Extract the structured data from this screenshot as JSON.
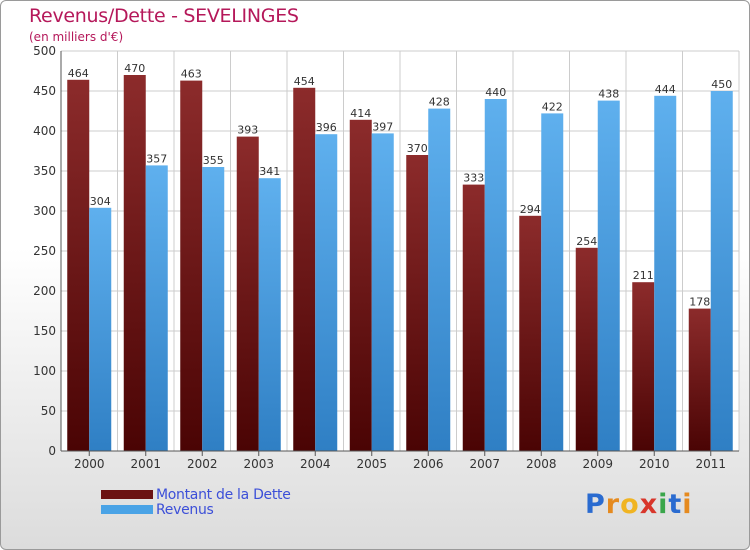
{
  "title": "Revenus/Dette - SEVELINGES",
  "subtitle": "(en milliers d'€)",
  "colors": {
    "title": "#b5185a",
    "dette": "#7a2323",
    "revenus": "#4aa3e6",
    "legend_text": "#3c4fd8"
  },
  "legend": {
    "items": [
      {
        "label": "Montant de la Dette",
        "color": "#6b1212"
      },
      {
        "label": "Revenus",
        "color": "#4aa3e6"
      }
    ]
  },
  "logo": {
    "letters": [
      {
        "ch": "P",
        "color": "#2a6bd0"
      },
      {
        "ch": "r",
        "color": "#e58a1f"
      },
      {
        "ch": "o",
        "color": "#f0b422"
      },
      {
        "ch": "x",
        "color": "#d8362b"
      },
      {
        "ch": "i",
        "color": "#3aa64b"
      },
      {
        "ch": "t",
        "color": "#2a6bd0"
      },
      {
        "ch": "i",
        "color": "#e58a1f"
      }
    ]
  },
  "chart_data": {
    "type": "bar",
    "title": "Revenus/Dette - SEVELINGES",
    "subtitle": "(en milliers d'€)",
    "categories": [
      "2000",
      "2001",
      "2002",
      "2003",
      "2004",
      "2005",
      "2006",
      "2007",
      "2008",
      "2009",
      "2010",
      "2011"
    ],
    "series": [
      {
        "name": "Montant de la Dette",
        "values": [
          464,
          470,
          463,
          393,
          454,
          414,
          370,
          333,
          294,
          254,
          211,
          178
        ]
      },
      {
        "name": "Revenus",
        "values": [
          304,
          357,
          355,
          341,
          396,
          397,
          428,
          440,
          422,
          438,
          444,
          450
        ]
      }
    ],
    "ylim": [
      0,
      500
    ],
    "yticks": [
      0,
      50,
      100,
      150,
      200,
      250,
      300,
      350,
      400,
      450,
      500
    ],
    "grid": true,
    "legend_position": "bottom-left",
    "data_labels": true
  }
}
